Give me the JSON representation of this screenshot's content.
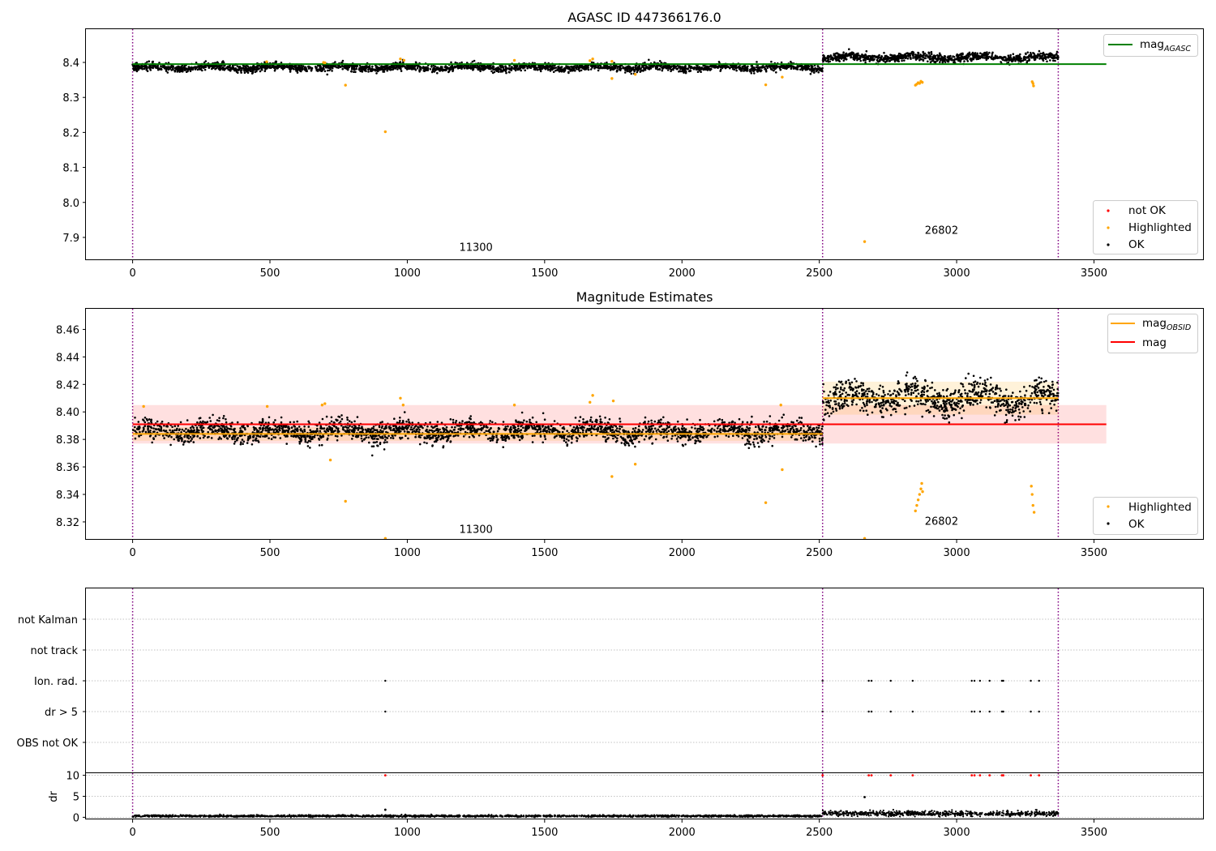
{
  "chart_data": [
    {
      "type": "scatter",
      "title": "AGASC ID 447366176.0",
      "xlim": [
        -170,
        3900
      ],
      "ylim": [
        7.835,
        8.495
      ],
      "x_ticks": [
        0,
        500,
        1000,
        1500,
        2000,
        2500,
        3000,
        3500
      ],
      "y_ticks": [
        7.9,
        8.0,
        8.1,
        8.2,
        8.3,
        8.4
      ],
      "grid": false,
      "lines": [
        {
          "name": "mag",
          "subscript": "AGASC",
          "color": "#008000",
          "y": 8.395,
          "x_range": [
            0,
            3545
          ]
        }
      ],
      "vlines": [
        0,
        2512,
        3370
      ],
      "annotations": [
        {
          "text": "11300",
          "x": 1250,
          "y": 7.862
        },
        {
          "text": "26802",
          "x": 2945,
          "y": 7.91
        }
      ],
      "segments": [
        {
          "x_range": [
            0,
            2512
          ],
          "mean": 8.386,
          "spread": 0.01
        },
        {
          "x_range": [
            2512,
            3370
          ],
          "mean": 8.414,
          "spread": 0.011
        }
      ],
      "series": [
        {
          "name": "not OK",
          "color": "#ff0000",
          "points": []
        },
        {
          "name": "Highlighted",
          "color": "#ffa500",
          "points": [
            [
              488,
              8.402
            ],
            [
              695,
              8.4
            ],
            [
              700,
              8.399
            ],
            [
              775,
              8.335
            ],
            [
              920,
              8.202
            ],
            [
              975,
              8.41
            ],
            [
              988,
              8.406
            ],
            [
              1390,
              8.406
            ],
            [
              1665,
              8.405
            ],
            [
              1675,
              8.41
            ],
            [
              1745,
              8.354
            ],
            [
              1745,
              8.403
            ],
            [
              1830,
              8.366
            ],
            [
              2305,
              8.336
            ],
            [
              2365,
              8.358
            ],
            [
              2665,
              7.888
            ],
            [
              2850,
              8.335
            ],
            [
              2855,
              8.338
            ],
            [
              2860,
              8.342
            ],
            [
              2865,
              8.34
            ],
            [
              2870,
              8.346
            ],
            [
              2875,
              8.343
            ],
            [
              3275,
              8.345
            ],
            [
              3278,
              8.34
            ],
            [
              3280,
              8.333
            ]
          ]
        },
        {
          "name": "OK",
          "color": "#000000",
          "points": []
        }
      ],
      "legend_placement": "lower-right, upper-right"
    },
    {
      "type": "scatter",
      "title": "Magnitude Estimates",
      "xlim": [
        -170,
        3900
      ],
      "ylim": [
        8.307,
        8.475
      ],
      "x_ticks": [
        0,
        500,
        1000,
        1500,
        2000,
        2500,
        3000,
        3500
      ],
      "y_ticks": [
        8.32,
        8.34,
        8.36,
        8.38,
        8.4,
        8.42,
        8.44,
        8.46
      ],
      "grid": false,
      "lines": [
        {
          "name": "mag",
          "subscript": "OBSID",
          "color": "#ffa500",
          "segments": [
            {
              "x_range": [
                0,
                2512
              ],
              "y": 8.384,
              "band": [
                8.379,
                8.389
              ]
            },
            {
              "x_range": [
                2512,
                3370
              ],
              "y": 8.41,
              "band": [
                8.398,
                8.422
              ]
            }
          ]
        },
        {
          "name": "mag",
          "subscript": "",
          "color": "#ff0000",
          "y": 8.391,
          "x_range": [
            0,
            3545
          ],
          "band": [
            8.377,
            8.405
          ]
        }
      ],
      "vlines": [
        0,
        2512,
        3370
      ],
      "annotations": [
        {
          "text": "11300",
          "x": 1250,
          "y": 8.312
        },
        {
          "text": "26802",
          "x": 2945,
          "y": 8.318
        }
      ],
      "segments": [
        {
          "x_range": [
            0,
            2512
          ],
          "mean": 8.386,
          "spread": 0.007
        },
        {
          "x_range": [
            2512,
            3370
          ],
          "mean": 8.41,
          "spread": 0.01
        }
      ],
      "series": [
        {
          "name": "Highlighted",
          "color": "#ffa500",
          "points": [
            [
              40,
              8.404
            ],
            [
              490,
              8.404
            ],
            [
              690,
              8.405
            ],
            [
              700,
              8.406
            ],
            [
              720,
              8.365
            ],
            [
              775,
              8.335
            ],
            [
              920,
              8.308
            ],
            [
              975,
              8.41
            ],
            [
              985,
              8.405
            ],
            [
              1390,
              8.405
            ],
            [
              1665,
              8.407
            ],
            [
              1675,
              8.412
            ],
            [
              1745,
              8.353
            ],
            [
              1750,
              8.408
            ],
            [
              1830,
              8.362
            ],
            [
              2305,
              8.334
            ],
            [
              2365,
              8.358
            ],
            [
              2360,
              8.405
            ],
            [
              2665,
              8.308
            ],
            [
              2850,
              8.328
            ],
            [
              2855,
              8.332
            ],
            [
              2860,
              8.336
            ],
            [
              2865,
              8.34
            ],
            [
              2870,
              8.344
            ],
            [
              2873,
              8.348
            ],
            [
              2876,
              8.342
            ],
            [
              3272,
              8.346
            ],
            [
              3275,
              8.34
            ],
            [
              3278,
              8.332
            ],
            [
              3282,
              8.327
            ]
          ]
        },
        {
          "name": "OK",
          "color": "#000000",
          "points": []
        }
      ],
      "legend_placement": "lower-right, upper-right"
    },
    {
      "type": "scatter",
      "title": "",
      "xlim": [
        -170,
        3900
      ],
      "categories": [
        "not Kalman",
        "not track",
        "Ion. rad.",
        "dr > 5",
        "OBS not OK"
      ],
      "grid": true,
      "vlines": [
        0,
        2512,
        3370
      ],
      "series": [
        {
          "name": "Ion. rad.",
          "color": "#000000",
          "x": [
            920,
            2512,
            2680,
            2690,
            2760,
            2840,
            3055,
            3065,
            3085,
            3120,
            3165,
            3170,
            3270,
            3300
          ]
        },
        {
          "name": "dr > 5",
          "color": "#000000",
          "x": [
            920,
            2512,
            2680,
            2690,
            2760,
            2840,
            3055,
            3065,
            3085,
            3120,
            3165,
            3170,
            3270,
            3300
          ]
        }
      ]
    },
    {
      "type": "scatter",
      "title": "",
      "ylabel": "dr",
      "xlim": [
        -170,
        3900
      ],
      "ylim": [
        -0.5,
        10.5
      ],
      "x_ticks": [
        0,
        500,
        1000,
        1500,
        2000,
        2500,
        3000,
        3500
      ],
      "x_tick_labels": [
        "0",
        "500",
        "1000",
        "1500",
        "2000",
        "2500",
        "3000",
        "3500"
      ],
      "y_ticks": [
        0,
        5,
        10
      ],
      "grid": true,
      "vlines": [
        0,
        2512,
        3370
      ],
      "segments": [
        {
          "x_range": [
            0,
            2512
          ],
          "mean": 0.3,
          "spread": 0.12
        },
        {
          "x_range": [
            2512,
            3370
          ],
          "mean": 0.9,
          "spread": 0.3
        }
      ],
      "series": [
        {
          "name": "not OK",
          "color": "#ff0000",
          "points": [
            [
              920,
              10
            ],
            [
              2512,
              10
            ],
            [
              2680,
              10
            ],
            [
              2690,
              10
            ],
            [
              2760,
              10
            ],
            [
              2840,
              10
            ],
            [
              3055,
              10
            ],
            [
              3065,
              10
            ],
            [
              3085,
              10
            ],
            [
              3120,
              10
            ],
            [
              3165,
              10
            ],
            [
              3170,
              10
            ],
            [
              3270,
              10
            ],
            [
              3300,
              10
            ]
          ]
        },
        {
          "name": "OK",
          "color": "#000000",
          "points": [
            [
              920,
              1.8
            ],
            [
              2665,
              4.8
            ]
          ]
        }
      ]
    }
  ]
}
